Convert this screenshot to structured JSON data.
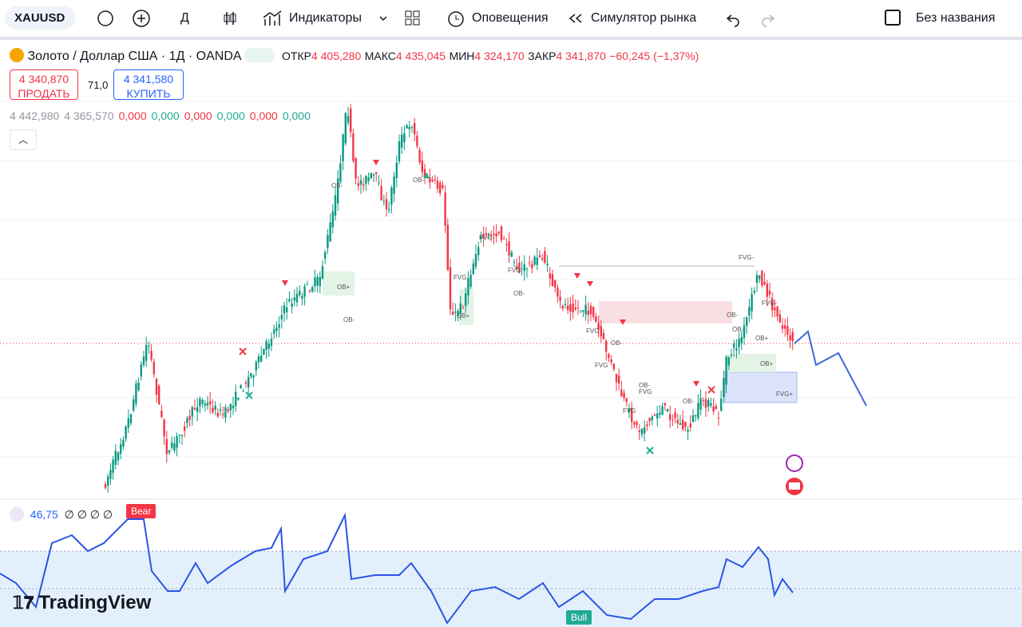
{
  "toolbar": {
    "symbol": "XAUUSD",
    "interval": "Д",
    "indicators": "Индикаторы",
    "alerts": "Оповещения",
    "replay": "Симулятор рынка",
    "layout": "Без названия"
  },
  "legend": {
    "title": "Золото / Доллар США · 1Д · OANDA",
    "open_label": "ОТКР",
    "open": "4 405,280",
    "high_label": "МАКС",
    "high": "4 435,045",
    "low_label": "МИН",
    "low": "4 324,170",
    "close_label": "ЗАКР",
    "close": "4 341,870",
    "change": "−60,245 (−1,37%)"
  },
  "trade": {
    "sell_price": "4 340,870",
    "sell": "ПРОДАТЬ",
    "spread": "71,0",
    "buy_price": "4 341,580",
    "buy": "КУПИТЬ"
  },
  "indicator_values": [
    "4 442,980",
    "4 365,570",
    "0,000",
    "0,000",
    "0,000",
    "0,000",
    "0,000",
    "0,000"
  ],
  "annotations": [
    "OB-",
    "OB+",
    "OB-",
    "OB-",
    "FVG-",
    "FVG",
    "FVG",
    "OB-",
    "FVG",
    "FVG",
    "OB-",
    "OB-",
    "FVG",
    "FVG",
    "OB-",
    "FVG-",
    "OB-",
    "OB+",
    "OB+",
    "FVG+",
    "OB+",
    "OB-",
    "FVG-"
  ],
  "oscillator": {
    "value": "46,75",
    "nulls": "∅ ∅ ∅ ∅",
    "bear": "Bear",
    "bull": "Bull"
  },
  "branding": "TradingView"
}
